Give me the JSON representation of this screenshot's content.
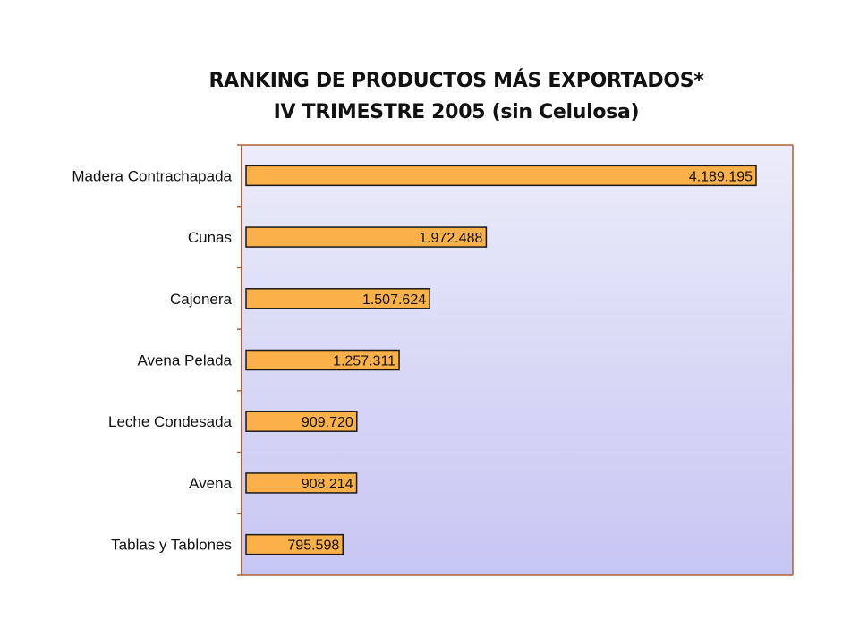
{
  "chart_data": {
    "type": "bar",
    "orientation": "horizontal",
    "title": "RANKING DE PRODUCTOS MÁS EXPORTADOS*",
    "subtitle": "IV TRIMESTRE 2005 (sin Celulosa)",
    "categories": [
      "Madera Contrachapada",
      "Cunas",
      "Cajonera",
      "Avena Pelada",
      "Leche Condesada",
      "Avena",
      "Tablas y Tablones"
    ],
    "values": [
      4189195,
      1972488,
      1507624,
      1257311,
      909720,
      908214,
      795598
    ],
    "value_labels": [
      "4.189.195",
      "1.972.488",
      "1.507.624",
      "1.257.311",
      "909.720",
      "908.214",
      "795.598"
    ],
    "xlim": [
      0,
      4500000
    ],
    "grid": false,
    "legend": "none",
    "colors": {
      "bar_fill": "#fbb04a",
      "bar_stroke": "#1a1a1a",
      "axis": "#b0603a",
      "plot_bg_top": "#ececfa",
      "plot_bg_bottom": "#c6c6f3"
    }
  }
}
